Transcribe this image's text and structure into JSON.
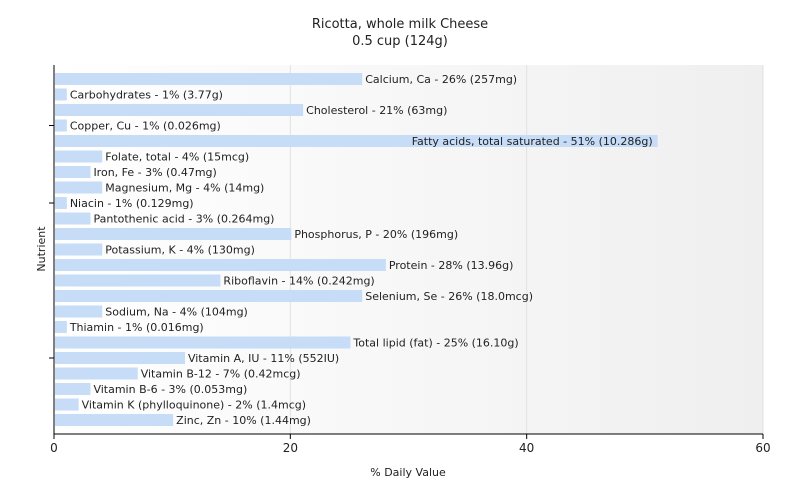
{
  "chart_data": {
    "type": "bar",
    "orientation": "horizontal",
    "title": "Ricotta, whole milk Cheese",
    "subtitle": "0.5 cup (124g)",
    "xlabel": "% Daily Value",
    "ylabel": "Nutrient",
    "xlim": [
      0,
      60
    ],
    "xticks": [
      "0",
      "20",
      "40",
      "60"
    ],
    "grid": true,
    "bar_color": "#c6dcf7",
    "categories": [
      {
        "value": 26,
        "label": "Calcium, Ca - 26% (257mg)"
      },
      {
        "value": 1,
        "label": "Carbohydrates - 1% (3.77g)"
      },
      {
        "value": 21,
        "label": "Cholesterol - 21% (63mg)"
      },
      {
        "value": 1,
        "label": "Copper, Cu - 1% (0.026mg)"
      },
      {
        "value": 51,
        "label": "Fatty acids, total saturated - 51% (10.286g)"
      },
      {
        "value": 4,
        "label": "Folate, total - 4% (15mcg)"
      },
      {
        "value": 3,
        "label": "Iron, Fe - 3% (0.47mg)"
      },
      {
        "value": 4,
        "label": "Magnesium, Mg - 4% (14mg)"
      },
      {
        "value": 1,
        "label": "Niacin - 1% (0.129mg)"
      },
      {
        "value": 3,
        "label": "Pantothenic acid - 3% (0.264mg)"
      },
      {
        "value": 20,
        "label": "Phosphorus, P - 20% (196mg)"
      },
      {
        "value": 4,
        "label": "Potassium, K - 4% (130mg)"
      },
      {
        "value": 28,
        "label": "Protein - 28% (13.96g)"
      },
      {
        "value": 14,
        "label": "Riboflavin - 14% (0.242mg)"
      },
      {
        "value": 26,
        "label": "Selenium, Se - 26% (18.0mcg)"
      },
      {
        "value": 4,
        "label": "Sodium, Na - 4% (104mg)"
      },
      {
        "value": 1,
        "label": "Thiamin - 1% (0.016mg)"
      },
      {
        "value": 25,
        "label": "Total lipid (fat) - 25% (16.10g)"
      },
      {
        "value": 11,
        "label": "Vitamin A, IU - 11% (552IU)"
      },
      {
        "value": 7,
        "label": "Vitamin B-12 - 7% (0.42mcg)"
      },
      {
        "value": 3,
        "label": "Vitamin B-6 - 3% (0.053mg)"
      },
      {
        "value": 2,
        "label": "Vitamin K (phylloquinone) - 2% (1.4mcg)"
      },
      {
        "value": 10,
        "label": "Zinc, Zn - 10% (1.44mg)"
      }
    ]
  }
}
